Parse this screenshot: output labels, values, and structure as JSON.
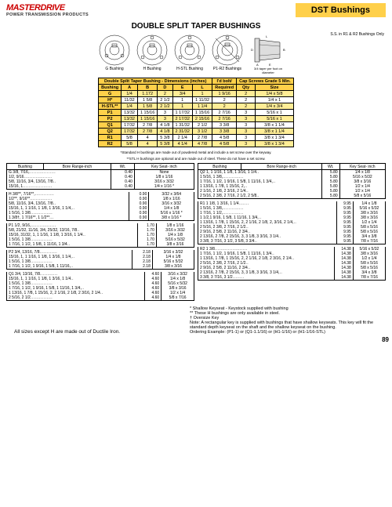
{
  "header": {
    "brand": "MASTERDRIVE",
    "brand_sub": "POWER TRANSMISSION PRODUCTS",
    "category": "DST Bushings",
    "main_title": "DOUBLE SPLIT TAPER BUSHINGS"
  },
  "diagrams": {
    "note": "S.S. in R1 & R2 Bushings Only",
    "taper_note": "3/4 taper per foot on diameter",
    "labels": [
      "G Bushing",
      "H Bushing",
      "H-STL Bushing",
      "P1-R2 Bushings",
      ""
    ]
  },
  "dim_table": {
    "header_main": "Double Split Taper Bushing - Dimensions (inches)",
    "header_idbolt": "I'd bolt/",
    "header_caps": "Cap Screws Grade 5 Min.",
    "cols": [
      "Bushing",
      "A",
      "B",
      "D",
      "E",
      "L",
      "Required",
      "Qty",
      "Size"
    ],
    "rows": [
      {
        "c": [
          "G",
          "1/4",
          "1.172",
          "2",
          "3/4",
          "1",
          "1 9/16",
          "2",
          "1/4 x 5/8"
        ],
        "odd": true
      },
      {
        "c": [
          "H*",
          "11/32",
          "1 5/8",
          "2 1/2",
          "1",
          "1 11/32",
          "2",
          "2",
          "1/4 x 1"
        ],
        "odd": false
      },
      {
        "c": [
          "H-STL**",
          "1/4",
          "1 5/8",
          "2 1/2",
          "1",
          "1 1/4",
          "2",
          "2",
          "1/4 x 3/4"
        ],
        "odd": true
      },
      {
        "c": [
          "P1",
          "13/32",
          "1 15/16",
          "3",
          "1 17/32",
          "1 15/16",
          "2 7/16",
          "3",
          "5/16 x 1"
        ],
        "odd": false
      },
      {
        "c": [
          "P2",
          "13/32",
          "1 15/16",
          "3",
          "2 17/32",
          "2 15/16",
          "2 7/16",
          "3",
          "5/16 x 1"
        ],
        "odd": true
      },
      {
        "c": [
          "Q1",
          "17/32",
          "2 7/8",
          "4 1/8",
          "1 31/32",
          "2 1/2",
          "3 3/8",
          "3",
          "3/8 x 1 1/4"
        ],
        "odd": false
      },
      {
        "c": [
          "Q2",
          "17/32",
          "2 7/8",
          "4 1/8",
          "2 31/32",
          "3 1/2",
          "3 3/8",
          "3",
          "3/8 x 1 1/4"
        ],
        "odd": true
      },
      {
        "c": [
          "R1",
          "5/8",
          "4",
          "5 3/8",
          "2 1/4",
          "2 7/8",
          "4 5/8",
          "3",
          "3/8 x 1 3/4"
        ],
        "odd": false
      },
      {
        "c": [
          "R2",
          "5/8",
          "4",
          "5 3/8",
          "4 1/4",
          "4 7/8",
          "4 5/8",
          "3",
          "3/8 x 1 3/4"
        ],
        "odd": true
      }
    ],
    "foot1": "*Standard H bushings are made out of powdered metal and include a set screw over the keyway.",
    "foot2": "**STL H bushings are optional and are made out of steel. These do not have a set screw."
  },
  "left_tables": [
    {
      "hdr": [
        "Bushing",
        "Bore Range-inch",
        "Wt.",
        "Key Seat- inch"
      ],
      "rows": [
        [
          "G 3/8, 7/16,",
          "",
          "0.40",
          "None"
        ],
        [
          "  1/2, 9/16",
          "",
          "0.40",
          "1/8  x  1/16"
        ],
        [
          "  5/8, 11/16, 3/4, 13/16, 7/8",
          "",
          "0.40",
          "3/16 x 3/32"
        ],
        [
          "  15/16, 1",
          "",
          "0.40",
          "1/4  x  1/16 *"
        ]
      ]
    },
    {
      "hdr": null,
      "rows": [
        [
          "H  3/8**, 7/16**,",
          "",
          "0.90",
          "3/32 x 3/64"
        ],
        [
          "  1/2**, 9/16**",
          "",
          "0.90",
          "1/8  x  1/16"
        ],
        [
          "  5/8, 11/16, 3/4, 13/16, 7/8",
          "",
          "0.90",
          "3/16 x 3/32"
        ],
        [
          "  15/16, 1, 1 1/16, 1 1/8, 1 3/16, 1 1/4,",
          "",
          "0.90",
          "1/4  x  1/8"
        ],
        [
          "  1 5/16, 1 3/8",
          "",
          "0.90",
          "5/16 x 1/16 *"
        ],
        [
          "  1 3/8†, 1 7/16**, 1 1/2**",
          "",
          "0.90",
          "3/8  x  1/16 *"
        ]
      ]
    },
    {
      "hdr": null,
      "rows": [
        [
          "P1 1/2, 9/16,",
          "",
          "1.70",
          "1/8  x  1/16"
        ],
        [
          "  5/8, 21/32, 11/16, 3/4, 25/32, 13/16, 7/8",
          "",
          "1.70",
          "3/16 x 3/32"
        ],
        [
          "  15/16, 31/32, 1, 1 1/16, 1 1/8, 1 3/16, 1 1/4",
          "",
          "1.70",
          "1/4  x  1/8"
        ],
        [
          "  1 5/16, 1 3/8",
          "",
          "1.70",
          "5/16 x 5/32"
        ],
        [
          "  1 7/16, 1 1/2, 1 5/8, 1 11/16, 1 3/4",
          "",
          "1.70",
          "3/8  x  3/16"
        ]
      ]
    },
    {
      "hdr": null,
      "rows": [
        [
          "P2 3/4, 13/16, 7/8",
          "",
          "2.18",
          "3/16 x 3/32"
        ],
        [
          "  15/16, 1, 1 1/16, 1 1/8, 1 3/16, 1 1/4,",
          "",
          "2.18",
          "1/4  x  1/8"
        ],
        [
          "  1 5/16, 1 3/8",
          "",
          "2.18",
          "5/16 x 5/32"
        ],
        [
          "  1 7/16, 1 1/2, 1 9/16, 1 5/8, 1 11/16,",
          "",
          "2.18",
          "3/8  x  3/16"
        ]
      ]
    },
    {
      "hdr": null,
      "rows": [
        [
          "Q1 3/4, 13/16, 7/8",
          "",
          "4.60",
          "3/16 x 3/32"
        ],
        [
          "  15/16, 1, 1 1/16, 1 1/8, 1 3/16, 1 1/4",
          "",
          "4.60",
          "1/4  x  1/8"
        ],
        [
          "  1 5/16, 1 3/8",
          "",
          "4.60",
          "5/16 x 5/32"
        ],
        [
          "  1 7/16, 1 1/2, 1 9/16, 1 5/8, 1 11/16, 1 3/4,",
          "",
          "4.60",
          "3/8  x  3/16"
        ],
        [
          "  1 13/16, 1 7/8, 1 15/16, 2, 2 1/16, 2 1/8, 2 3/16, 2 1/4",
          "",
          "4.60",
          "1/2  x  1/4"
        ],
        [
          "  2 5/16, 2 1/2",
          "",
          "4.60",
          "5/8  x  7/16"
        ]
      ]
    }
  ],
  "right_tables": [
    {
      "hdr": [
        "Bushing",
        "Bore Range-inch",
        "Wt.",
        "Key Seat- inch"
      ],
      "rows": [
        [
          "Q2 1, 1 1/16, 1 1/8, 1 3/16, 1 1/4",
          "",
          "5.80",
          "1/4  x  1/8"
        ],
        [
          "  1 5/16, 1 3/8,",
          "",
          "5.80",
          "5/16 x 5/32"
        ],
        [
          "  1 7/16, 1 1/2, 1 9/16, 1 5/8, 1 11/16, 1 3/4,",
          "",
          "5.80",
          "3/8  x  3/16"
        ],
        [
          "  1 13/16, 1 7/8, 1 15/16, 2,",
          "",
          "5.80",
          "1/2  x  1/4"
        ],
        [
          "  2 1/16, 2 1/8, 2 3/16, 2 1/4",
          "",
          "5.80",
          "1/2  x  1/4"
        ],
        [
          "  2 5/16, 2 3/8, 2 7/16, 2 1/2, 2 5/8",
          "",
          "5.80",
          "5/8  x  5/16"
        ]
      ]
    },
    {
      "hdr": null,
      "rows": [
        [
          "R1 1 1/8, 1 3/16, 1 1/4",
          "",
          "9.95",
          "1/4  x  1/8"
        ],
        [
          "  1 5/16, 1 3/8,",
          "",
          "9.95",
          "5/16 x 5/32"
        ],
        [
          "  1 7/16, 1 1/2,",
          "",
          "9.95",
          "3/8  x  3/16"
        ],
        [
          "  1 1/2,1 9/16, 1 5/8, 1 11/16, 1 3/4,",
          "",
          "9.95",
          "3/8  x  3/16"
        ],
        [
          "  1 13/16, 1 7/8, 1 15/16, 2, 2 1/16, 2 1/8, 2, 3/16, 2 1/4,",
          "",
          "9.95",
          "1/2  x  1/4"
        ],
        [
          "  2 5/16, 2 3/8, 2 7/16, 2 1/2",
          "",
          "9.95",
          "5/8  x  5/16"
        ],
        [
          "  2 9/16, 2 5/8, 2 11/16, 2 3/4",
          "",
          "9.95",
          "5/8  x  5/16"
        ],
        [
          "  2 13/16, 2 7/8, 2 15/16, 3, 3 1/8, 3 3/16, 3 1/4",
          "",
          "9.95",
          "3/4  x  3/8"
        ],
        [
          "  3 3/8, 3 7/16, 3 1/2, 3 5/8, 3 3/4",
          "",
          "9.95",
          "7/8  x  7/16"
        ]
      ]
    },
    {
      "hdr": null,
      "rows": [
        [
          "R2 1 3/8",
          "",
          "14.38",
          "5/16 x 5/32"
        ],
        [
          "  1 7/16, 1 1/2, 1 9/16, 1 5/8, 1 11/16, 1 3/4",
          "",
          "14.38",
          "3/8  x  3/16"
        ],
        [
          "  1 13/16, 1 7/8, 1 15/16, 2, 2 1/16, 2 1/8, 2 3/16, 2 1/4",
          "",
          "14.38",
          "1/2  x  1/4"
        ],
        [
          "  2 5/16, 2 3/8, 2 7/16, 2 1/2",
          "",
          "14.38",
          "5/8  x  5/16"
        ],
        [
          "  2 9/16, 2 5/8, 2 11/16, 2 3/4",
          "",
          "14.38",
          "5/8  x  5/16"
        ],
        [
          "  2 13/16, 2 7/8, 2 15/16, 3, 3 1/8, 3 3/16, 3 1/4,",
          "",
          "14.38",
          "3/4  x  3/8"
        ],
        [
          "  3 3/8, 3 7/16, 3 1/2",
          "",
          "14.38",
          "7/8  x  7/16"
        ]
      ]
    }
  ],
  "notes": {
    "n1": "*   Shallow Keyseat - Keystock supplied with bushing",
    "n2": "**  These H bushings are only available in steel.",
    "n3": "†  Oversize Key",
    "n4": "Note:   A rectangular key is supplied with bushings that have shallow keyseats.  This key will fit the standard depth keyseat on the shaft and the shallow keyseat on the bushing.",
    "n5": "Ordering Example: (P1-1) or (Q1-1.1/16) or (H1-1/16) or (H1-1/16-STL)"
  },
  "footer": {
    "all_sizes": "All sizes except H are made out of Ductile Iron.",
    "page": "89"
  }
}
